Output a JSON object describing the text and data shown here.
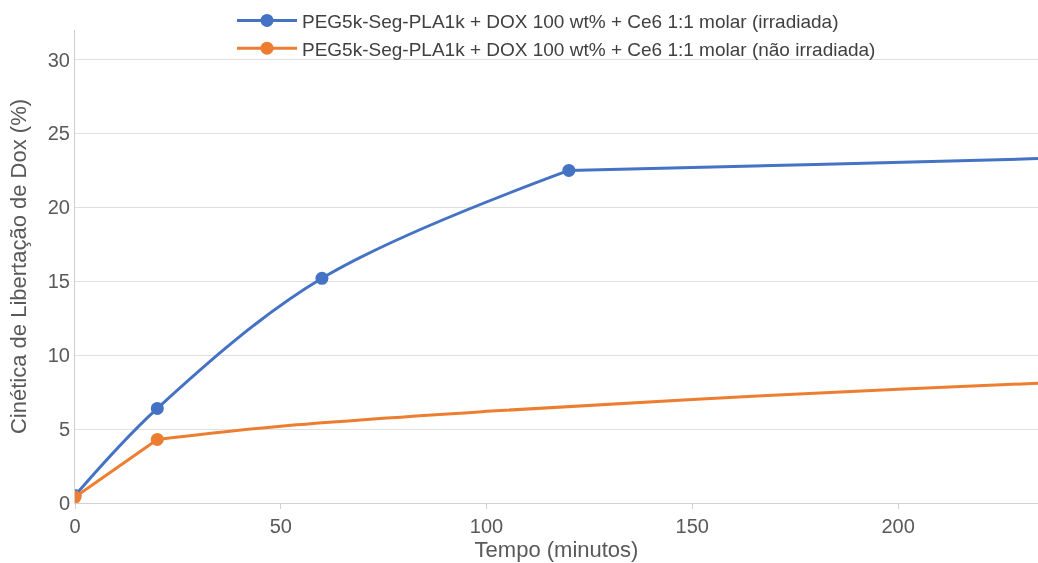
{
  "chart_data": {
    "type": "line",
    "xlabel": "Tempo (minutos)",
    "ylabel": "Cinética de Libertação de Dox (%)",
    "xlim": [
      0,
      234
    ],
    "xticks": [
      0,
      50,
      100,
      150,
      200
    ],
    "ylim": [
      0,
      32
    ],
    "yticks": [
      0,
      5,
      10,
      15,
      20,
      25,
      30
    ],
    "grid": "y",
    "legend": "top",
    "line_style": "solid",
    "series": [
      {
        "name": "PEG5k-Seg-PLA1k + DOX 100 wt% + Ce6 1:1 molar (irradiada)",
        "color": "#4472c4",
        "x": [
          0,
          20,
          60,
          120
        ],
        "values": [
          0.5,
          6.4,
          15.2,
          22.5
        ],
        "marker": "circle"
      },
      {
        "name": "PEG5k-Seg-PLA1k + DOX 100 wt% + Ce6 1:1 molar (não irradiada)",
        "color": "#ed7d31",
        "x": [
          0,
          20
        ],
        "values": [
          0.4,
          4.3
        ],
        "marker": "circle"
      },
      {
        "color": "#4472c4",
        "x": [
          120,
          180,
          234
        ],
        "values": [
          22.5,
          22.9,
          23.3
        ],
        "marker": "none"
      },
      {
        "color": "#ed7d31",
        "x": [
          20,
          50,
          100,
          150,
          200,
          234
        ],
        "values": [
          4.3,
          5.2,
          6.2,
          7.0,
          7.7,
          8.1
        ],
        "marker": "none"
      }
    ]
  }
}
